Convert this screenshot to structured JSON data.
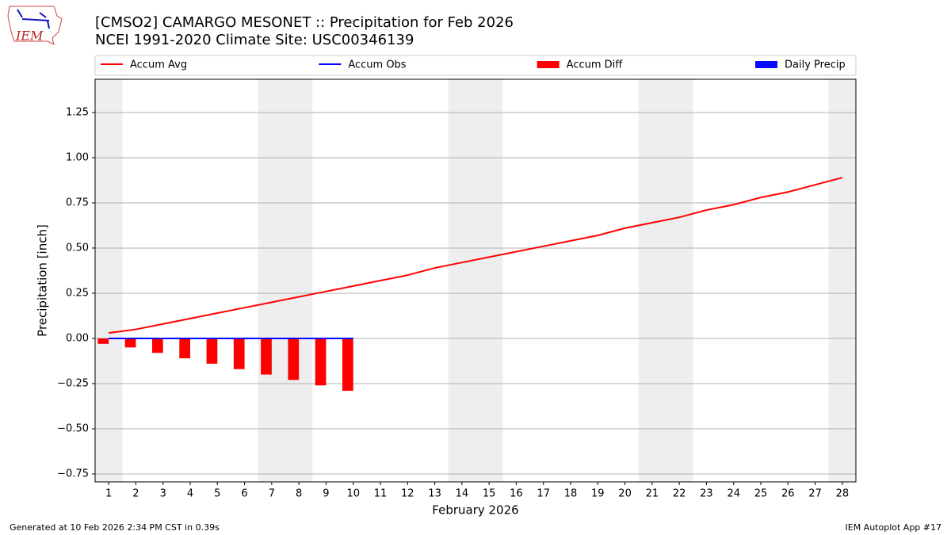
{
  "logo_text": "IEM",
  "footer_left": "Generated at 10 Feb 2026 2:34 PM CST in 0.39s",
  "footer_right": "IEM Autoplot App #17",
  "chart_data": {
    "type": "line",
    "title": "[CMSO2] CAMARGO MESONET :: Precipitation for Feb 2026",
    "subtitle": "NCEI 1991-2020 Climate Site: USC00346139",
    "x_label": "February 2026",
    "y_label": "Precipitation [inch]",
    "x": [
      1,
      2,
      3,
      4,
      5,
      6,
      7,
      8,
      9,
      10,
      11,
      12,
      13,
      14,
      15,
      16,
      17,
      18,
      19,
      20,
      21,
      22,
      23,
      24,
      25,
      26,
      27,
      28
    ],
    "xlim": [
      0.5,
      28.5
    ],
    "xticks": [
      1,
      2,
      3,
      4,
      5,
      6,
      7,
      8,
      9,
      10,
      11,
      12,
      13,
      14,
      15,
      16,
      17,
      18,
      19,
      20,
      21,
      22,
      23,
      24,
      25,
      26,
      27,
      28
    ],
    "ylim": [
      -0.794,
      1.434
    ],
    "yticks": [
      {
        "value": -0.75,
        "label": "−0.75"
      },
      {
        "value": -0.5,
        "label": "−0.50"
      },
      {
        "value": -0.25,
        "label": "−0.25"
      },
      {
        "value": 0,
        "label": "0.00"
      },
      {
        "value": 0.25,
        "label": "0.25"
      },
      {
        "value": 0.5,
        "label": "0.50"
      },
      {
        "value": 0.75,
        "label": "0.75"
      },
      {
        "value": 1,
        "label": "1.00"
      },
      {
        "value": 1.25,
        "label": "1.25"
      }
    ],
    "grid": true,
    "shaded_ranges": [
      [
        0.5,
        1.5
      ],
      [
        6.5,
        8.5
      ],
      [
        13.5,
        15.5
      ],
      [
        20.5,
        22.5
      ],
      [
        27.5,
        28.5
      ]
    ],
    "shade_color": "#eeeeee",
    "legend": "top",
    "series": [
      {
        "name": "Accum Avg",
        "type": "line",
        "color": "#ff0000",
        "values": [
          0.03,
          0.05,
          0.08,
          0.11,
          0.14,
          0.17,
          0.2,
          0.23,
          0.26,
          0.29,
          0.32,
          0.35,
          0.39,
          0.42,
          0.45,
          0.48,
          0.51,
          0.54,
          0.57,
          0.61,
          0.64,
          0.67,
          0.71,
          0.74,
          0.78,
          0.81,
          0.85,
          0.89
        ]
      },
      {
        "name": "Accum Obs",
        "type": "line",
        "color": "#0000ff",
        "values": [
          0,
          0,
          0,
          0,
          0,
          0,
          0,
          0,
          0,
          0,
          null,
          null,
          null,
          null,
          null,
          null,
          null,
          null,
          null,
          null,
          null,
          null,
          null,
          null,
          null,
          null,
          null,
          null
        ]
      },
      {
        "name": "Accum Diff",
        "type": "bar",
        "color": "#ff0000",
        "values": [
          -0.03,
          -0.05,
          -0.08,
          -0.11,
          -0.14,
          -0.17,
          -0.2,
          -0.23,
          -0.26,
          -0.29,
          null,
          null,
          null,
          null,
          null,
          null,
          null,
          null,
          null,
          null,
          null,
          null,
          null,
          null,
          null,
          null,
          null,
          null
        ]
      },
      {
        "name": "Daily Precip",
        "type": "bar",
        "color": "#0a0aff",
        "values": [
          0,
          0,
          0,
          0,
          0,
          0,
          0,
          0,
          0,
          0,
          null,
          null,
          null,
          null,
          null,
          null,
          null,
          null,
          null,
          null,
          null,
          null,
          null,
          null,
          null,
          null,
          null,
          null
        ]
      }
    ]
  }
}
